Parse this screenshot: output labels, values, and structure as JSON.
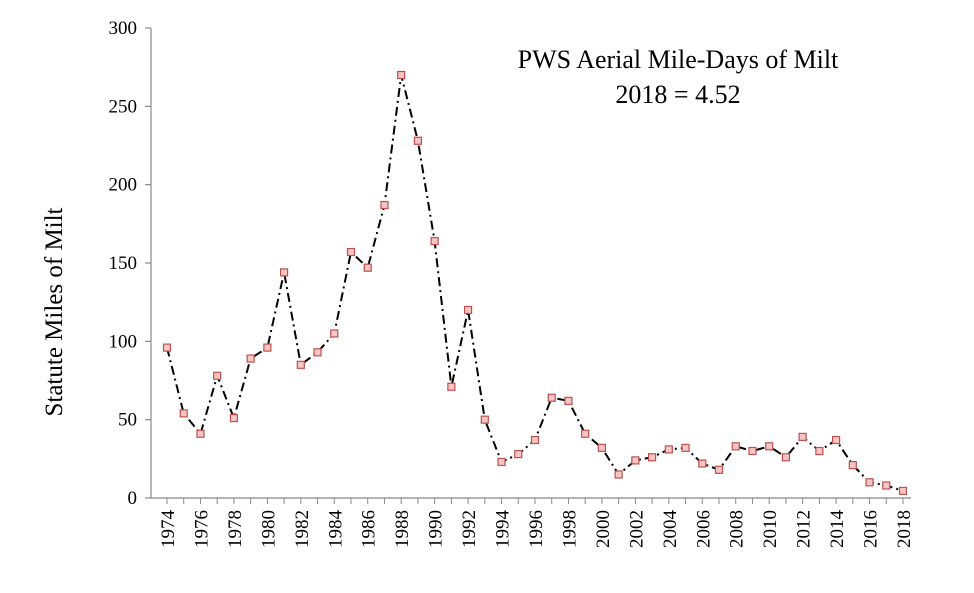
{
  "chart_data": {
    "type": "line",
    "title": "",
    "annotation_lines": [
      "PWS Aerial Mile-Days of Milt",
      "2018 = 4.52"
    ],
    "xlabel": "",
    "ylabel": "Statute Miles of Milt",
    "ylim": [
      0,
      300
    ],
    "yticks": [
      0,
      50,
      100,
      150,
      200,
      250,
      300
    ],
    "xlim": [
      1974,
      2018
    ],
    "xticks": [
      1974,
      1976,
      1978,
      1980,
      1982,
      1984,
      1986,
      1988,
      1990,
      1992,
      1994,
      1996,
      1998,
      2000,
      2002,
      2004,
      2006,
      2008,
      2010,
      2012,
      2014,
      2016,
      2018
    ],
    "grid": false,
    "legend": "none",
    "line_style": "dash-dot",
    "line_color": "#000000",
    "marker": "square",
    "marker_fill": "#f4c6c6",
    "marker_stroke": "#c0504d",
    "series": [
      {
        "x": [
          1974,
          1975,
          1976,
          1977,
          1978,
          1979,
          1980,
          1981,
          1982,
          1983,
          1984,
          1985,
          1986,
          1987,
          1988,
          1989,
          1990,
          1991,
          1992,
          1993,
          1994,
          1995,
          1996,
          1997,
          1998,
          1999,
          2000,
          2001,
          2002,
          2003,
          2004,
          2005,
          2006,
          2007,
          2008,
          2009,
          2010,
          2011,
          2012,
          2013,
          2014,
          2015,
          2016,
          2017,
          2018
        ],
        "values": [
          96,
          54,
          41,
          78,
          51,
          89,
          96,
          144,
          85,
          93,
          105,
          157,
          147,
          187,
          270,
          228,
          164,
          71,
          120,
          50,
          23,
          28,
          37,
          64,
          62,
          41,
          32,
          15,
          24,
          26,
          31,
          32,
          22,
          18,
          33,
          30,
          33,
          26,
          39,
          30,
          37,
          21,
          10,
          8,
          4.52
        ]
      }
    ]
  }
}
